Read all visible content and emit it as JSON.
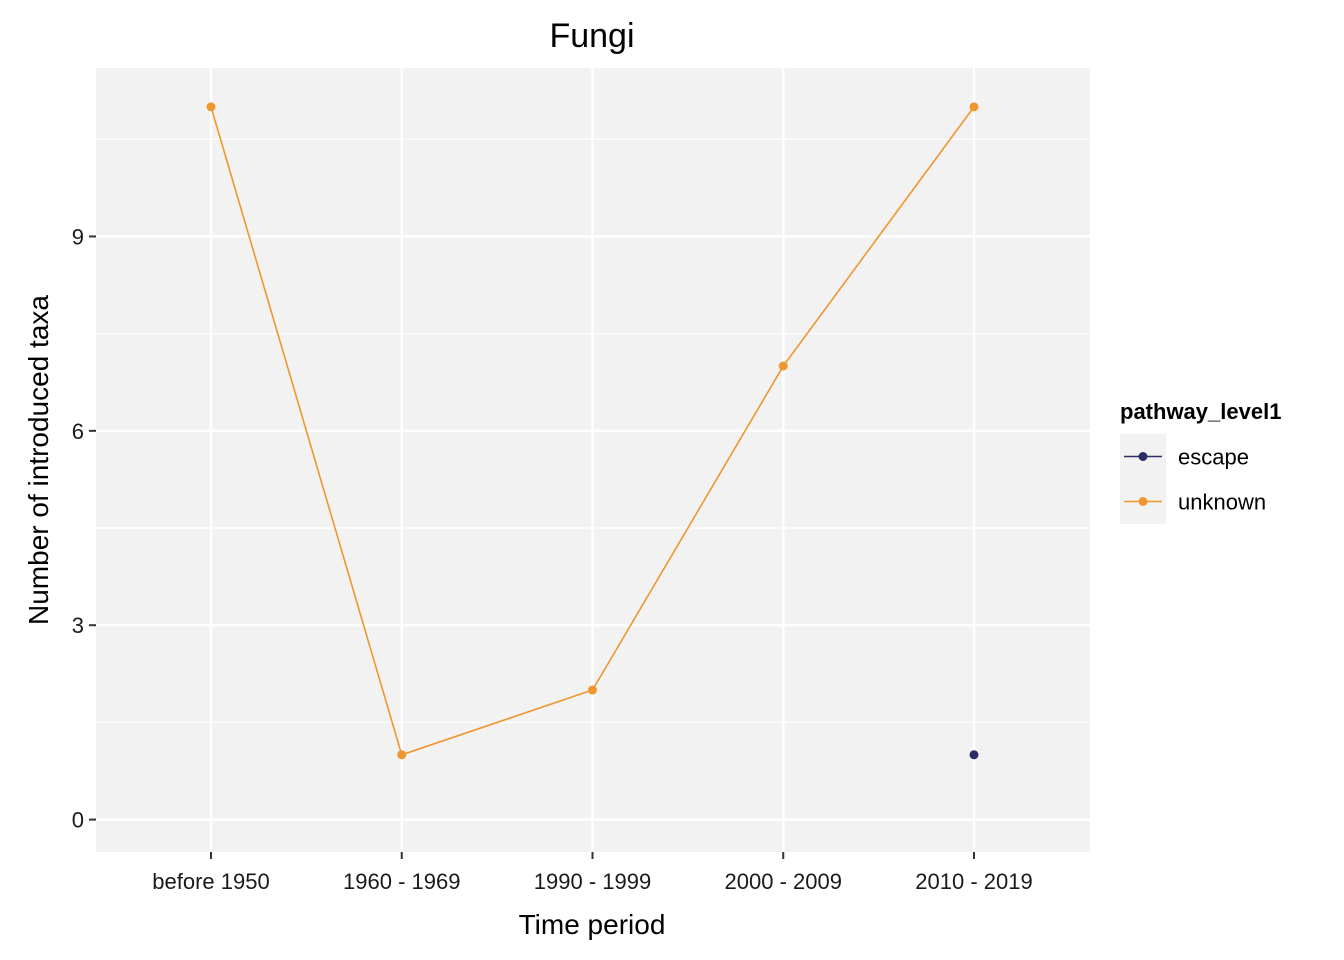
{
  "chart_data": {
    "type": "line",
    "title": "Fungi",
    "xlabel": "Time period",
    "ylabel": "Number of introduced taxa",
    "categories": [
      "before 1950",
      "1960 - 1969",
      "1990 - 1999",
      "2000 - 2009",
      "2010 - 2019"
    ],
    "ylim": [
      -0.5,
      11.6
    ],
    "yticks": [
      0,
      3,
      6,
      9
    ],
    "grid": true,
    "legend": {
      "title": "pathway_level1",
      "position": "right"
    },
    "series": [
      {
        "name": "escape",
        "color": "#2b2d66",
        "values": [
          null,
          null,
          null,
          null,
          1
        ]
      },
      {
        "name": "unknown",
        "color": "#f0962e",
        "values": [
          11,
          1,
          2,
          7,
          11
        ]
      }
    ]
  }
}
